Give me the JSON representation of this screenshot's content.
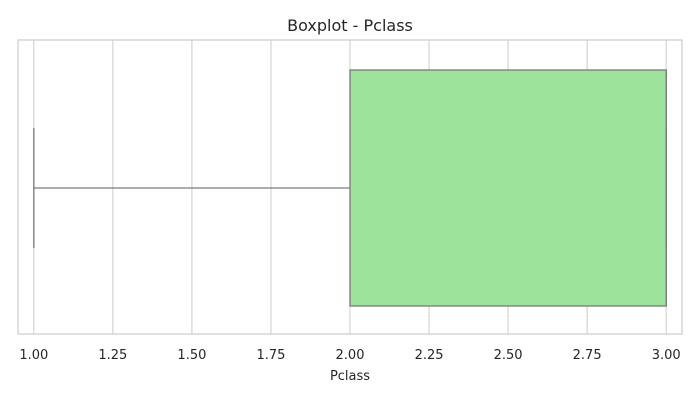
{
  "chart_data": {
    "type": "boxplot",
    "title": "Boxplot - Pclass",
    "xlabel": "Pclass",
    "ylabel": "",
    "orientation": "horizontal",
    "xlim": [
      0.95,
      3.05
    ],
    "xticks": [
      1.0,
      1.25,
      1.5,
      1.75,
      2.0,
      2.25,
      2.5,
      2.75,
      3.0
    ],
    "xtick_labels": [
      "1.00",
      "1.25",
      "1.50",
      "1.75",
      "2.00",
      "2.25",
      "2.50",
      "2.75",
      "3.00"
    ],
    "grid": true,
    "box": {
      "min": 1.0,
      "q1": 2.0,
      "median": 3.0,
      "q3": 3.0,
      "max": 3.0,
      "color": "#9de39b",
      "edge_color": "#7a7a7a"
    }
  }
}
